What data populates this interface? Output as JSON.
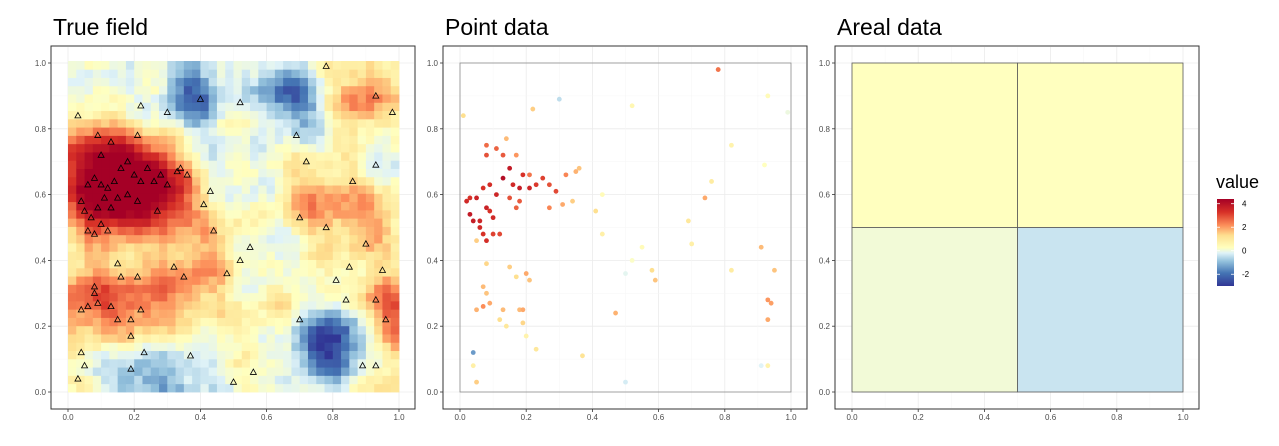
{
  "colors": {
    "palette": "RdYlBu (reversed)",
    "low": "#313695",
    "mid": "#ffffbf",
    "high": "#a50026"
  },
  "legend": {
    "title": "value",
    "ticks": [
      "4",
      "2",
      "0",
      "-2"
    ],
    "range": [
      -3,
      4.4
    ]
  },
  "chart_data": [
    {
      "type": "heatmap",
      "title": "True field",
      "xlabel": "",
      "ylabel": "",
      "xlim": [
        0,
        1
      ],
      "ylim": [
        0,
        1
      ],
      "grid": true,
      "x_ticks": [
        "0.0",
        "0.2",
        "0.4",
        "0.6",
        "0.8",
        "1.0"
      ],
      "y_ticks": [
        "0.0",
        "0.2",
        "0.4",
        "0.6",
        "0.8",
        "1.0"
      ],
      "grid_resolution": 40,
      "anchors": [
        {
          "x": 0.1,
          "y": 0.58,
          "v": 3.6
        },
        {
          "x": 0.08,
          "y": 0.73,
          "v": 2.6
        },
        {
          "x": 0.25,
          "y": 0.65,
          "v": 2.8
        },
        {
          "x": 0.17,
          "y": 0.63,
          "v": 3.0
        },
        {
          "x": 0.3,
          "y": 0.56,
          "v": 1.8
        },
        {
          "x": 0.06,
          "y": 0.28,
          "v": 2.2
        },
        {
          "x": 0.22,
          "y": 0.27,
          "v": 1.8
        },
        {
          "x": 0.37,
          "y": 0.33,
          "v": 1.3
        },
        {
          "x": 0.96,
          "y": 0.24,
          "v": 2.6
        },
        {
          "x": 0.9,
          "y": 0.53,
          "v": 1.4
        },
        {
          "x": 0.88,
          "y": 0.88,
          "v": 1.9
        },
        {
          "x": 0.74,
          "y": 0.58,
          "v": 1.4
        },
        {
          "x": 0.53,
          "y": 0.87,
          "v": 1.0
        },
        {
          "x": 0.47,
          "y": 0.45,
          "v": 0.8
        },
        {
          "x": 0.65,
          "y": 0.3,
          "v": 0.6
        },
        {
          "x": 0.39,
          "y": 0.9,
          "v": -2.6
        },
        {
          "x": 0.63,
          "y": 0.91,
          "v": -2.2
        },
        {
          "x": 0.73,
          "y": 0.85,
          "v": -1.2
        },
        {
          "x": 0.77,
          "y": 0.13,
          "v": -2.4
        },
        {
          "x": 0.85,
          "y": 0.18,
          "v": -1.8
        },
        {
          "x": 0.2,
          "y": 0.04,
          "v": -1.6
        },
        {
          "x": 0.36,
          "y": 0.04,
          "v": -1.2
        },
        {
          "x": 0.6,
          "y": 0.4,
          "v": -1.0
        },
        {
          "x": 0.57,
          "y": 0.6,
          "v": -0.5
        },
        {
          "x": 0.11,
          "y": 0.9,
          "v": -0.7
        },
        {
          "x": 0.48,
          "y": 0.72,
          "v": -0.6
        },
        {
          "x": 0.98,
          "y": 0.72,
          "v": -0.8
        },
        {
          "x": 0.99,
          "y": 0.05,
          "v": 0.7
        }
      ],
      "markers": [
        {
          "x": 0.03,
          "y": 0.84
        },
        {
          "x": 0.22,
          "y": 0.87
        },
        {
          "x": 0.3,
          "y": 0.85
        },
        {
          "x": 0.4,
          "y": 0.89
        },
        {
          "x": 0.52,
          "y": 0.88
        },
        {
          "x": 0.78,
          "y": 0.99
        },
        {
          "x": 0.93,
          "y": 0.9
        },
        {
          "x": 0.98,
          "y": 0.85
        },
        {
          "x": 0.06,
          "y": 0.63
        },
        {
          "x": 0.08,
          "y": 0.65
        },
        {
          "x": 0.1,
          "y": 0.63
        },
        {
          "x": 0.12,
          "y": 0.62
        },
        {
          "x": 0.14,
          "y": 0.64
        },
        {
          "x": 0.16,
          "y": 0.68
        },
        {
          "x": 0.18,
          "y": 0.7
        },
        {
          "x": 0.2,
          "y": 0.66
        },
        {
          "x": 0.22,
          "y": 0.64
        },
        {
          "x": 0.24,
          "y": 0.68
        },
        {
          "x": 0.26,
          "y": 0.64
        },
        {
          "x": 0.28,
          "y": 0.66
        },
        {
          "x": 0.3,
          "y": 0.63
        },
        {
          "x": 0.34,
          "y": 0.68
        },
        {
          "x": 0.04,
          "y": 0.58
        },
        {
          "x": 0.05,
          "y": 0.55
        },
        {
          "x": 0.07,
          "y": 0.53
        },
        {
          "x": 0.09,
          "y": 0.56
        },
        {
          "x": 0.11,
          "y": 0.59
        },
        {
          "x": 0.13,
          "y": 0.56
        },
        {
          "x": 0.06,
          "y": 0.49
        },
        {
          "x": 0.08,
          "y": 0.48
        },
        {
          "x": 0.1,
          "y": 0.51
        },
        {
          "x": 0.12,
          "y": 0.49
        },
        {
          "x": 0.15,
          "y": 0.59
        },
        {
          "x": 0.18,
          "y": 0.6
        },
        {
          "x": 0.21,
          "y": 0.58
        },
        {
          "x": 0.27,
          "y": 0.55
        },
        {
          "x": 0.33,
          "y": 0.67
        },
        {
          "x": 0.36,
          "y": 0.66
        },
        {
          "x": 0.09,
          "y": 0.78
        },
        {
          "x": 0.13,
          "y": 0.76
        },
        {
          "x": 0.1,
          "y": 0.72
        },
        {
          "x": 0.21,
          "y": 0.78
        },
        {
          "x": 0.43,
          "y": 0.61
        },
        {
          "x": 0.41,
          "y": 0.57
        },
        {
          "x": 0.44,
          "y": 0.49
        },
        {
          "x": 0.69,
          "y": 0.78
        },
        {
          "x": 0.72,
          "y": 0.7
        },
        {
          "x": 0.86,
          "y": 0.64
        },
        {
          "x": 0.93,
          "y": 0.69
        },
        {
          "x": 0.7,
          "y": 0.53
        },
        {
          "x": 0.78,
          "y": 0.5
        },
        {
          "x": 0.9,
          "y": 0.45
        },
        {
          "x": 0.95,
          "y": 0.37
        },
        {
          "x": 0.85,
          "y": 0.38
        },
        {
          "x": 0.81,
          "y": 0.34
        },
        {
          "x": 0.52,
          "y": 0.4
        },
        {
          "x": 0.48,
          "y": 0.36
        },
        {
          "x": 0.32,
          "y": 0.38
        },
        {
          "x": 0.35,
          "y": 0.35
        },
        {
          "x": 0.15,
          "y": 0.39
        },
        {
          "x": 0.16,
          "y": 0.35
        },
        {
          "x": 0.21,
          "y": 0.35
        },
        {
          "x": 0.08,
          "y": 0.32
        },
        {
          "x": 0.08,
          "y": 0.3
        },
        {
          "x": 0.09,
          "y": 0.27
        },
        {
          "x": 0.13,
          "y": 0.26
        },
        {
          "x": 0.04,
          "y": 0.25
        },
        {
          "x": 0.06,
          "y": 0.26
        },
        {
          "x": 0.15,
          "y": 0.22
        },
        {
          "x": 0.19,
          "y": 0.22
        },
        {
          "x": 0.22,
          "y": 0.25
        },
        {
          "x": 0.04,
          "y": 0.12
        },
        {
          "x": 0.05,
          "y": 0.08
        },
        {
          "x": 0.03,
          "y": 0.04
        },
        {
          "x": 0.19,
          "y": 0.17
        },
        {
          "x": 0.5,
          "y": 0.03
        },
        {
          "x": 0.55,
          "y": 0.44
        },
        {
          "x": 0.84,
          "y": 0.28
        },
        {
          "x": 0.93,
          "y": 0.28
        },
        {
          "x": 0.96,
          "y": 0.22
        },
        {
          "x": 0.89,
          "y": 0.08
        },
        {
          "x": 0.93,
          "y": 0.08
        },
        {
          "x": 0.7,
          "y": 0.22
        },
        {
          "x": 0.56,
          "y": 0.06
        },
        {
          "x": 0.23,
          "y": 0.12
        },
        {
          "x": 0.19,
          "y": 0.07
        },
        {
          "x": 0.37,
          "y": 0.11
        }
      ]
    },
    {
      "type": "scatter",
      "title": "Point data",
      "xlabel": "",
      "ylabel": "",
      "xlim": [
        0,
        1
      ],
      "ylim": [
        0,
        1
      ],
      "grid": true,
      "x_ticks": [
        "0.0",
        "0.2",
        "0.4",
        "0.6",
        "0.8",
        "1.0"
      ],
      "y_ticks": [
        "0.0",
        "0.2",
        "0.4",
        "0.6",
        "0.8",
        "1.0"
      ],
      "points": [
        {
          "x": 0.01,
          "y": 0.84,
          "v": 1.0
        },
        {
          "x": 0.22,
          "y": 0.86,
          "v": 1.2
        },
        {
          "x": 0.3,
          "y": 0.89,
          "v": -0.8
        },
        {
          "x": 0.52,
          "y": 0.87,
          "v": 0.4
        },
        {
          "x": 0.78,
          "y": 0.98,
          "v": 2.2
        },
        {
          "x": 0.93,
          "y": 0.9,
          "v": 0.3
        },
        {
          "x": 0.99,
          "y": 0.85,
          "v": -0.2
        },
        {
          "x": 0.05,
          "y": 0.59,
          "v": 3.4
        },
        {
          "x": 0.07,
          "y": 0.62,
          "v": 3.0
        },
        {
          "x": 0.09,
          "y": 0.63,
          "v": 3.1
        },
        {
          "x": 0.11,
          "y": 0.6,
          "v": 3.3
        },
        {
          "x": 0.13,
          "y": 0.65,
          "v": 4.0
        },
        {
          "x": 0.15,
          "y": 0.68,
          "v": 3.6
        },
        {
          "x": 0.16,
          "y": 0.63,
          "v": 3.2
        },
        {
          "x": 0.18,
          "y": 0.62,
          "v": 3.5
        },
        {
          "x": 0.19,
          "y": 0.66,
          "v": 3.0
        },
        {
          "x": 0.21,
          "y": 0.62,
          "v": 3.3
        },
        {
          "x": 0.23,
          "y": 0.63,
          "v": 2.9
        },
        {
          "x": 0.25,
          "y": 0.65,
          "v": 2.8
        },
        {
          "x": 0.27,
          "y": 0.63,
          "v": 2.6
        },
        {
          "x": 0.29,
          "y": 0.61,
          "v": 2.7
        },
        {
          "x": 0.32,
          "y": 0.66,
          "v": 2.0
        },
        {
          "x": 0.35,
          "y": 0.67,
          "v": 1.5
        },
        {
          "x": 0.36,
          "y": 0.68,
          "v": 1.3
        },
        {
          "x": 0.02,
          "y": 0.58,
          "v": 3.2
        },
        {
          "x": 0.03,
          "y": 0.54,
          "v": 3.6
        },
        {
          "x": 0.04,
          "y": 0.52,
          "v": 3.5
        },
        {
          "x": 0.06,
          "y": 0.52,
          "v": 3.3
        },
        {
          "x": 0.08,
          "y": 0.56,
          "v": 3.4
        },
        {
          "x": 0.09,
          "y": 0.55,
          "v": 3.0
        },
        {
          "x": 0.1,
          "y": 0.53,
          "v": 3.2
        },
        {
          "x": 0.07,
          "y": 0.48,
          "v": 3.0
        },
        {
          "x": 0.08,
          "y": 0.46,
          "v": 3.1
        },
        {
          "x": 0.1,
          "y": 0.48,
          "v": 2.8
        },
        {
          "x": 0.12,
          "y": 0.48,
          "v": 2.7
        },
        {
          "x": 0.05,
          "y": 0.46,
          "v": 1.2
        },
        {
          "x": 0.15,
          "y": 0.59,
          "v": 2.6
        },
        {
          "x": 0.17,
          "y": 0.56,
          "v": 2.4
        },
        {
          "x": 0.18,
          "y": 0.58,
          "v": 2.5
        },
        {
          "x": 0.21,
          "y": 0.66,
          "v": 2.2
        },
        {
          "x": 0.27,
          "y": 0.56,
          "v": 2.0
        },
        {
          "x": 0.31,
          "y": 0.57,
          "v": 1.6
        },
        {
          "x": 0.08,
          "y": 0.75,
          "v": 2.3
        },
        {
          "x": 0.11,
          "y": 0.74,
          "v": 2.4
        },
        {
          "x": 0.13,
          "y": 0.72,
          "v": 2.5
        },
        {
          "x": 0.14,
          "y": 0.77,
          "v": 1.4
        },
        {
          "x": 0.08,
          "y": 0.72,
          "v": 2.6
        },
        {
          "x": 0.17,
          "y": 0.72,
          "v": 1.8
        },
        {
          "x": 0.34,
          "y": 0.58,
          "v": 1.2
        },
        {
          "x": 0.41,
          "y": 0.55,
          "v": 1.0
        },
        {
          "x": 0.43,
          "y": 0.6,
          "v": 0.3
        },
        {
          "x": 0.43,
          "y": 0.48,
          "v": 0.6
        },
        {
          "x": 0.69,
          "y": 0.52,
          "v": 0.8
        },
        {
          "x": 0.74,
          "y": 0.59,
          "v": 1.6
        },
        {
          "x": 0.7,
          "y": 0.45,
          "v": 0.6
        },
        {
          "x": 0.76,
          "y": 0.64,
          "v": 0.7
        },
        {
          "x": 0.82,
          "y": 0.75,
          "v": 0.5
        },
        {
          "x": 0.92,
          "y": 0.69,
          "v": 0.2
        },
        {
          "x": 0.91,
          "y": 0.44,
          "v": 1.4
        },
        {
          "x": 0.95,
          "y": 0.37,
          "v": 1.3
        },
        {
          "x": 0.82,
          "y": 0.37,
          "v": 0.7
        },
        {
          "x": 0.93,
          "y": 0.28,
          "v": 1.8
        },
        {
          "x": 0.94,
          "y": 0.27,
          "v": 1.7
        },
        {
          "x": 0.93,
          "y": 0.22,
          "v": 1.6
        },
        {
          "x": 0.91,
          "y": 0.08,
          "v": -0.5
        },
        {
          "x": 0.93,
          "y": 0.08,
          "v": 0.5
        },
        {
          "x": 0.5,
          "y": 0.36,
          "v": -0.4
        },
        {
          "x": 0.52,
          "y": 0.4,
          "v": 0.1
        },
        {
          "x": 0.55,
          "y": 0.44,
          "v": 0.3
        },
        {
          "x": 0.58,
          "y": 0.37,
          "v": 1.0
        },
        {
          "x": 0.59,
          "y": 0.34,
          "v": 1.3
        },
        {
          "x": 0.47,
          "y": 0.24,
          "v": 1.5
        },
        {
          "x": 0.5,
          "y": 0.03,
          "v": -0.6
        },
        {
          "x": 0.2,
          "y": 0.36,
          "v": 1.6
        },
        {
          "x": 0.17,
          "y": 0.35,
          "v": 1.0
        },
        {
          "x": 0.15,
          "y": 0.38,
          "v": 1.2
        },
        {
          "x": 0.08,
          "y": 0.39,
          "v": 1.1
        },
        {
          "x": 0.07,
          "y": 0.32,
          "v": 1.4
        },
        {
          "x": 0.08,
          "y": 0.3,
          "v": 1.3
        },
        {
          "x": 0.09,
          "y": 0.27,
          "v": 1.6
        },
        {
          "x": 0.07,
          "y": 0.26,
          "v": 1.9
        },
        {
          "x": 0.05,
          "y": 0.25,
          "v": 1.5
        },
        {
          "x": 0.13,
          "y": 0.25,
          "v": 1.4
        },
        {
          "x": 0.18,
          "y": 0.25,
          "v": 1.4
        },
        {
          "x": 0.19,
          "y": 0.25,
          "v": 1.6
        },
        {
          "x": 0.12,
          "y": 0.22,
          "v": 1.0
        },
        {
          "x": 0.19,
          "y": 0.21,
          "v": 1.1
        },
        {
          "x": 0.2,
          "y": 0.17,
          "v": 0.5
        },
        {
          "x": 0.14,
          "y": 0.2,
          "v": 0.8
        },
        {
          "x": 0.04,
          "y": 0.12,
          "v": -1.6
        },
        {
          "x": 0.04,
          "y": 0.08,
          "v": 0.6
        },
        {
          "x": 0.05,
          "y": 0.03,
          "v": 1.2
        },
        {
          "x": 0.23,
          "y": 0.13,
          "v": 0.8
        },
        {
          "x": 0.37,
          "y": 0.11,
          "v": 0.9
        },
        {
          "x": 0.21,
          "y": 0.34,
          "v": 1.3
        },
        {
          "x": 0.03,
          "y": 0.59,
          "v": 3.0
        },
        {
          "x": 0.06,
          "y": 0.5,
          "v": 3.2
        }
      ]
    },
    {
      "type": "heatmap",
      "title": "Areal data",
      "xlabel": "",
      "ylabel": "",
      "xlim": [
        0,
        1
      ],
      "ylim": [
        0,
        1
      ],
      "grid": true,
      "x_ticks": [
        "0.0",
        "0.2",
        "0.4",
        "0.6",
        "0.8",
        "1.0"
      ],
      "y_ticks": [
        "0.0",
        "0.2",
        "0.4",
        "0.6",
        "0.8",
        "1.0"
      ],
      "regions": [
        {
          "x": [
            0,
            0.5
          ],
          "y": [
            0.5,
            1
          ],
          "v": 0.2
        },
        {
          "x": [
            0.5,
            1
          ],
          "y": [
            0.5,
            1
          ],
          "v": 0.2
        },
        {
          "x": [
            0,
            0.5
          ],
          "y": [
            0,
            0.5
          ],
          "v": -0.1
        },
        {
          "x": [
            0.5,
            1
          ],
          "y": [
            0,
            0.5
          ],
          "v": -0.7
        }
      ]
    }
  ]
}
